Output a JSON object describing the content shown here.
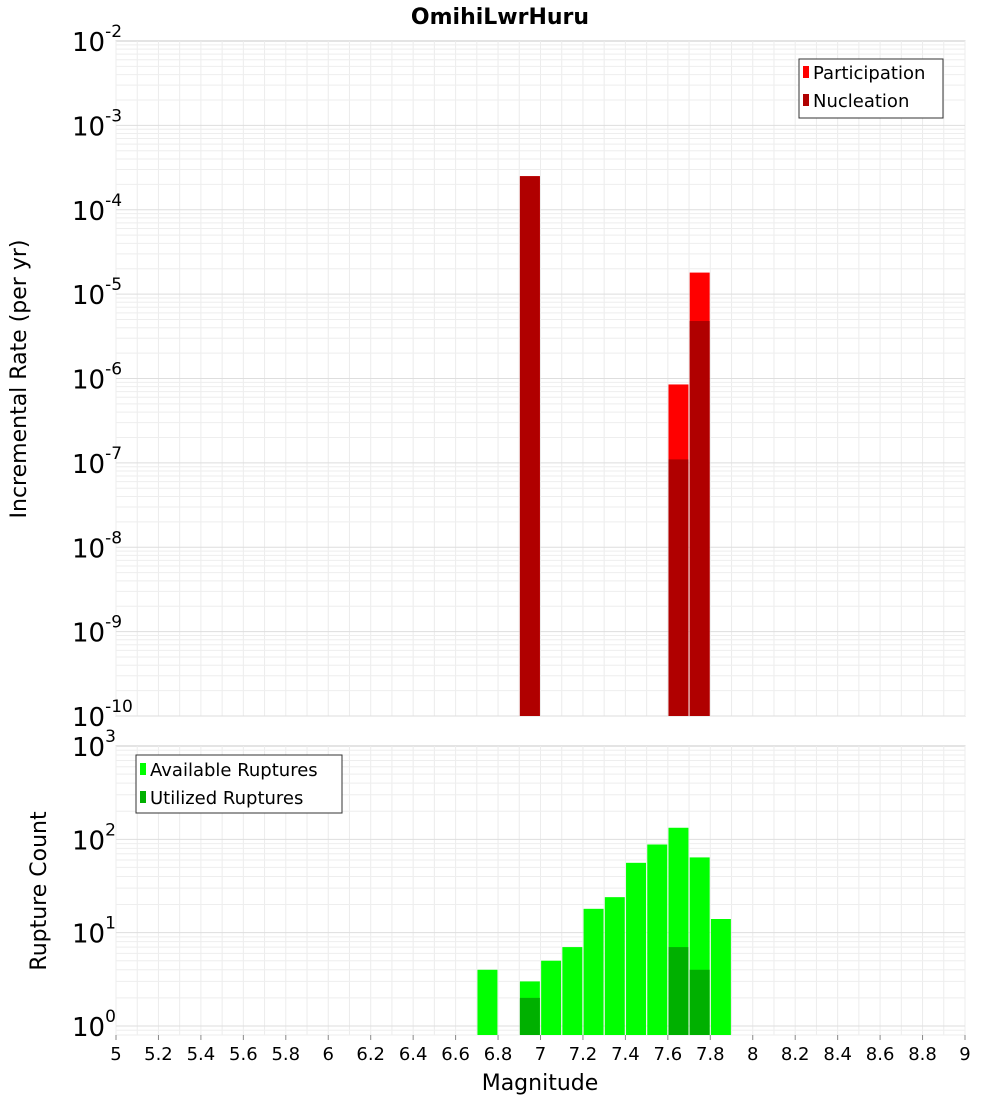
{
  "chart_data": [
    {
      "type": "bar",
      "title": "OmihiLwrHuru",
      "xlabel": "",
      "ylabel": "Incremental Rate (per yr)",
      "yscale": "log",
      "ylim": [
        1e-10,
        0.01
      ],
      "xlim": [
        5,
        9
      ],
      "x_tick_labels": [
        "5",
        "5.2",
        "5.4",
        "5.6",
        "5.8",
        "6",
        "6.2",
        "6.4",
        "6.6",
        "6.8",
        "7",
        "7.2",
        "7.4",
        "7.6",
        "7.8",
        "8",
        "8.2",
        "8.4",
        "8.6",
        "8.8",
        "9"
      ],
      "y_tick_exponents": [
        "-2",
        "-3",
        "-4",
        "-5",
        "-6",
        "-7",
        "-8",
        "-9",
        "-10"
      ],
      "grid": true,
      "legend": "top-right",
      "series": [
        {
          "name": "Participation",
          "color": "#ff0000",
          "x": [
            6.95,
            7.65,
            7.75
          ],
          "values": [
            0.00025,
            8.5e-07,
            1.8e-05
          ]
        },
        {
          "name": "Nucleation",
          "color": "#b00000",
          "x": [
            6.95,
            7.65,
            7.75
          ],
          "values": [
            0.00025,
            1.1e-07,
            4.8e-06
          ]
        }
      ]
    },
    {
      "type": "bar",
      "title": "",
      "xlabel": "Magnitude",
      "ylabel": "Rupture Count",
      "yscale": "log",
      "ylim": [
        0.8,
        1000
      ],
      "xlim": [
        5,
        9
      ],
      "x_tick_labels": [
        "5",
        "5.2",
        "5.4",
        "5.6",
        "5.8",
        "6",
        "6.2",
        "6.4",
        "6.6",
        "6.8",
        "7",
        "7.2",
        "7.4",
        "7.6",
        "7.8",
        "8",
        "8.2",
        "8.4",
        "8.6",
        "8.8",
        "9"
      ],
      "y_tick_exponents": [
        "3",
        "2",
        "1",
        "0"
      ],
      "grid": true,
      "legend": "top-left",
      "series": [
        {
          "name": "Available Ruptures",
          "color": "#00ff00",
          "x": [
            6.75,
            6.95,
            7.05,
            7.15,
            7.25,
            7.35,
            7.45,
            7.55,
            7.65,
            7.75,
            7.85
          ],
          "values": [
            4,
            3,
            5,
            7,
            18,
            24,
            56,
            88,
            133,
            64,
            14
          ]
        },
        {
          "name": "Utilized Ruptures",
          "color": "#00b000",
          "x": [
            6.95,
            7.65,
            7.75
          ],
          "values": [
            2,
            7,
            4
          ]
        }
      ]
    }
  ]
}
